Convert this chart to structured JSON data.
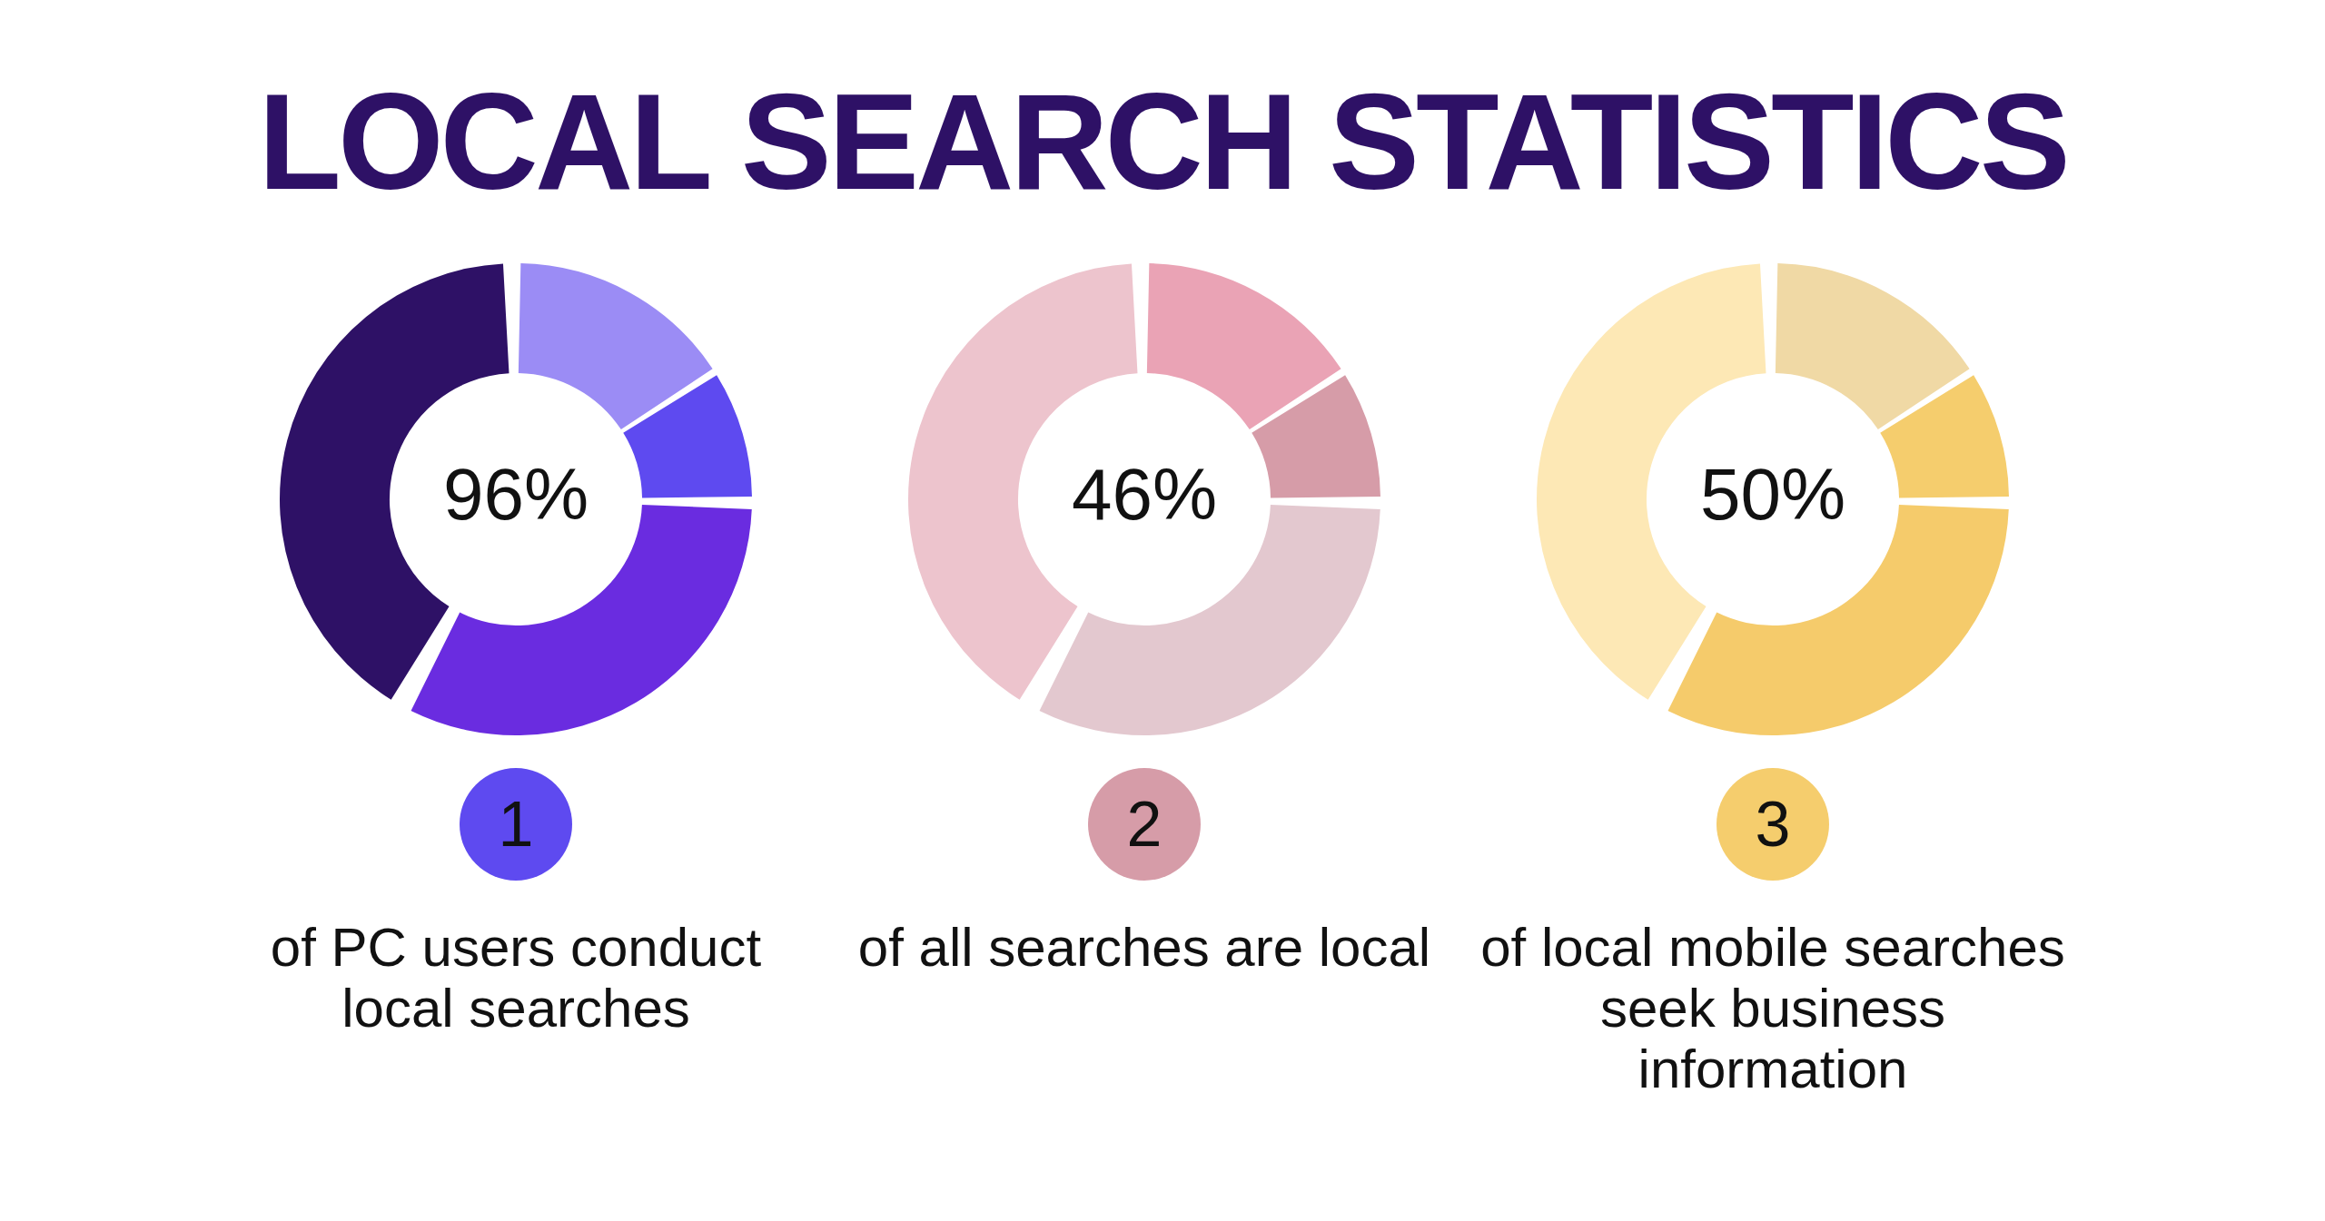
{
  "chart_data": [
    {
      "type": "donut",
      "title": "LOCAL SEARCH STATISTICS",
      "categories": [
        null,
        null,
        null,
        null
      ],
      "values": [
        16,
        9,
        33,
        42
      ],
      "colors": [
        "#9b8cf5",
        "#5e4af0",
        "#6a2ce0",
        "#2e1166"
      ],
      "annotations": [
        "96%",
        "1",
        "of PC users conduct local searches"
      ]
    },
    {
      "type": "donut",
      "categories": [
        null,
        null,
        null,
        null
      ],
      "values": [
        16,
        9,
        33,
        42
      ],
      "colors": [
        "#eaa3b5",
        "#d69ca8",
        "#e3c8cf",
        "#edc4cd"
      ],
      "annotations": [
        "46%",
        "2",
        "of all searches are local"
      ]
    },
    {
      "type": "donut",
      "categories": [
        null,
        null,
        null,
        null
      ],
      "values": [
        16,
        9,
        33,
        42
      ],
      "colors": [
        "#f0d9a5",
        "#f5cd6d",
        "#f5cb6b",
        "#fde8b5"
      ],
      "annotations": [
        "50%",
        "3",
        "of local mobile searches seek business information"
      ]
    }
  ]
}
